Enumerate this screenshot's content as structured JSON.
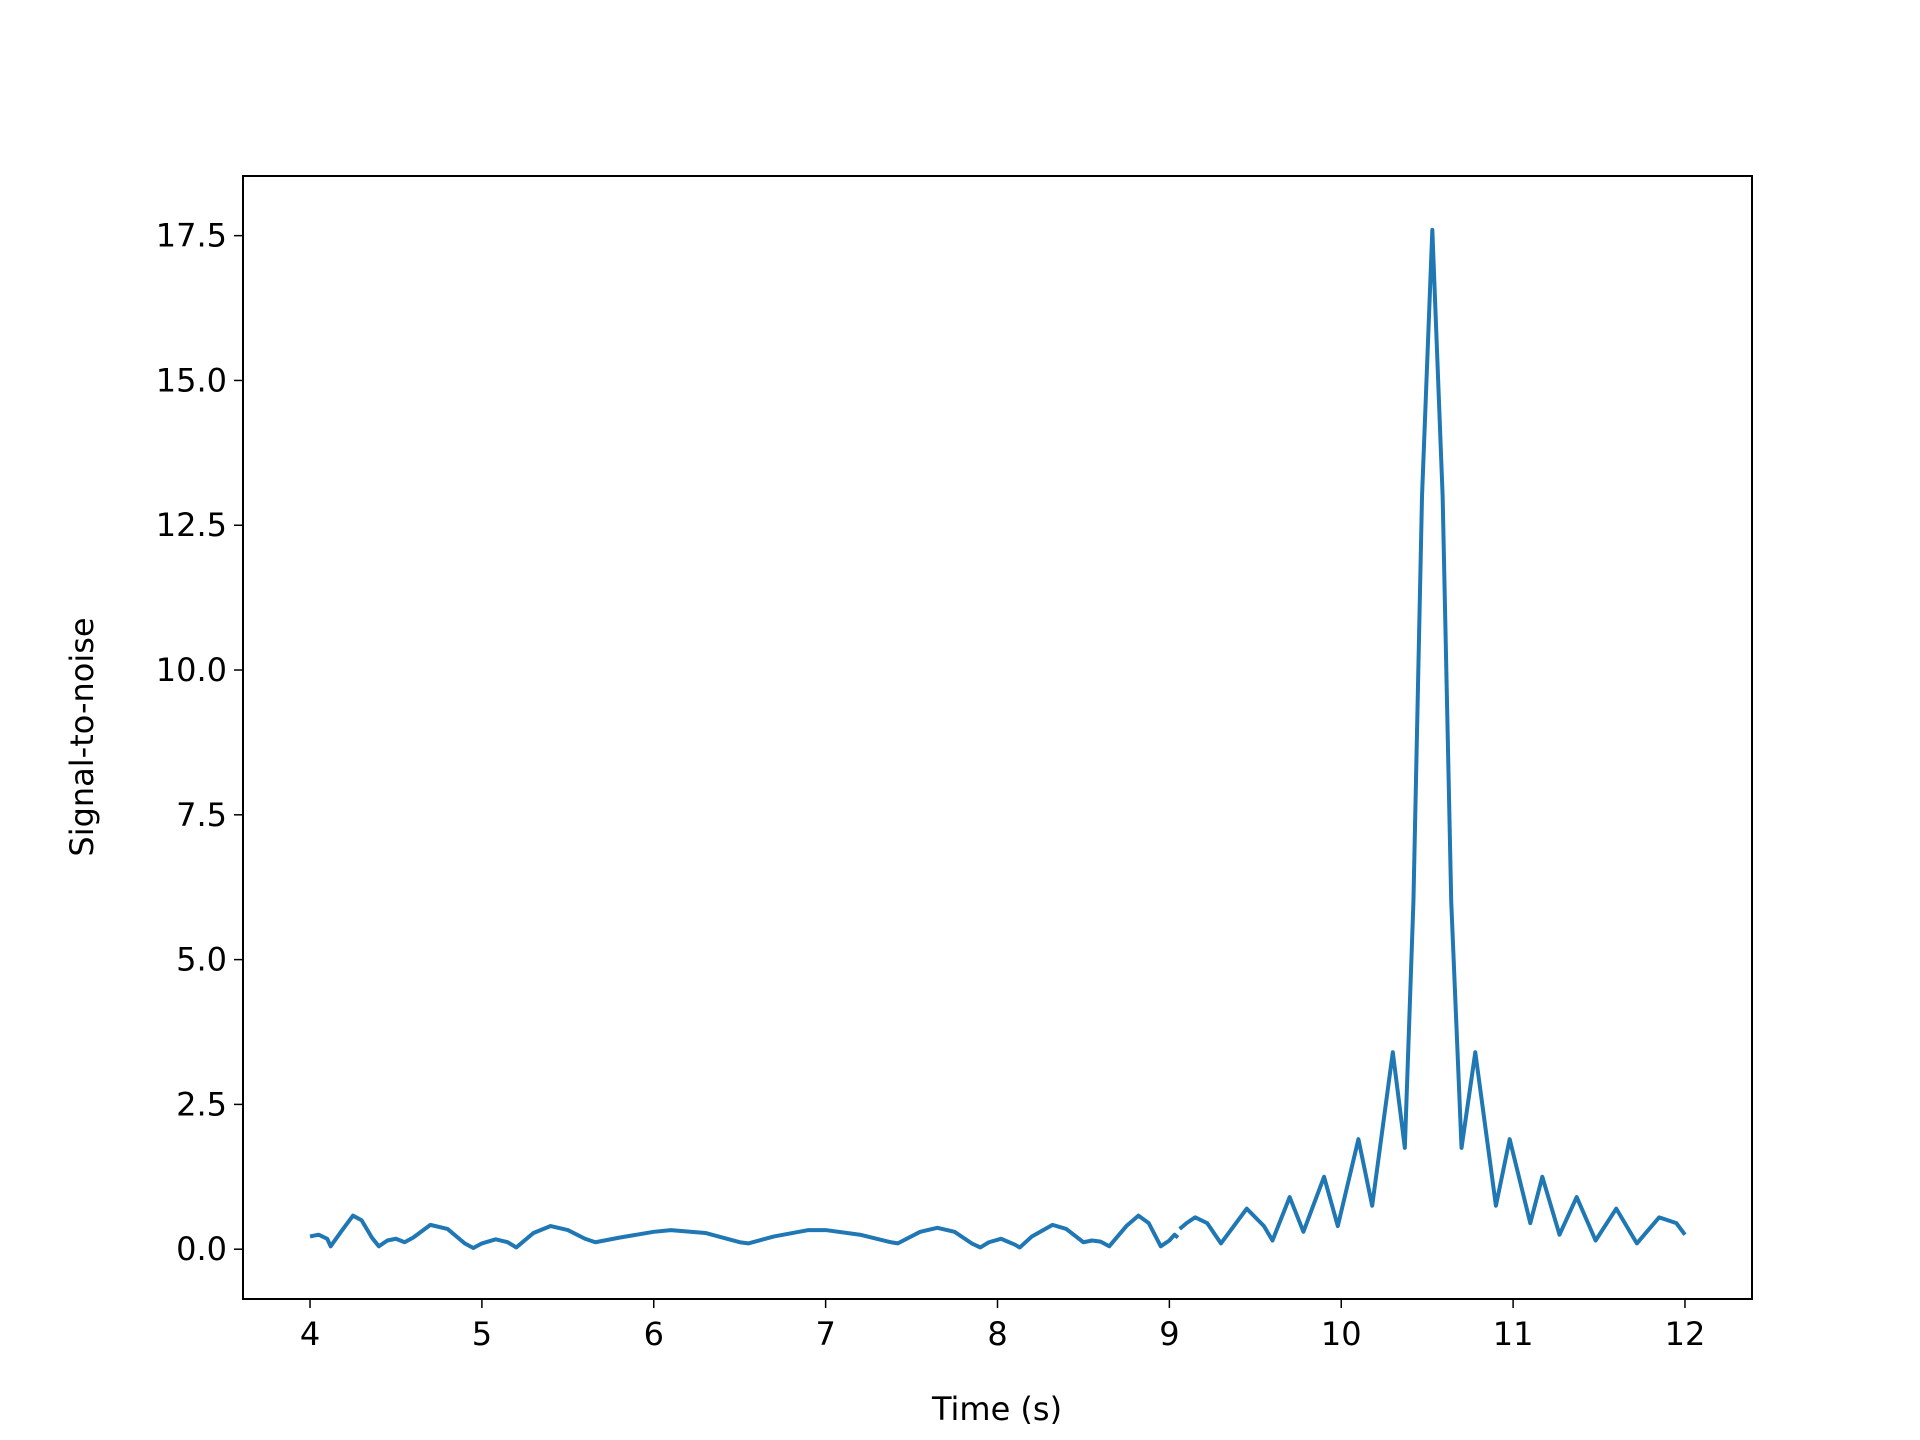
{
  "chart_data": {
    "type": "line",
    "xlabel": "Time (s)",
    "ylabel": "Signal-to-noise",
    "color": "#1f77b4",
    "x": [
      4.0,
      4.05,
      4.1,
      4.12,
      4.18,
      4.25,
      4.3,
      4.36,
      4.4,
      4.45,
      4.5,
      4.55,
      4.6,
      4.7,
      4.8,
      4.9,
      4.95,
      5.0,
      5.08,
      5.15,
      5.2,
      5.3,
      5.4,
      5.5,
      5.6,
      5.66,
      5.8,
      6.0,
      6.1,
      6.3,
      6.5,
      6.55,
      6.7,
      6.9,
      7.0,
      7.2,
      7.38,
      7.42,
      7.55,
      7.65,
      7.75,
      7.85,
      7.9,
      7.95,
      8.02,
      8.1,
      8.13,
      8.2,
      8.32,
      8.4,
      8.5,
      8.55,
      8.6,
      8.65,
      8.75,
      8.82,
      8.88,
      8.95,
      9.0,
      9.03,
      9.05,
      9.055,
      9.06,
      9.1,
      9.15,
      9.22,
      9.3,
      9.45,
      9.55,
      9.6,
      9.7,
      9.78,
      9.9,
      9.98,
      10.1,
      10.18,
      10.3,
      10.37,
      10.42,
      10.47,
      10.53,
      10.59,
      10.64,
      10.7,
      10.78,
      10.9,
      10.98,
      11.1,
      11.17,
      11.27,
      11.37,
      11.48,
      11.6,
      11.72,
      11.85,
      11.95,
      12.0
    ],
    "values": [
      0.22,
      0.25,
      0.18,
      0.05,
      0.3,
      0.58,
      0.5,
      0.2,
      0.05,
      0.15,
      0.18,
      0.12,
      0.2,
      0.42,
      0.35,
      0.1,
      0.02,
      0.1,
      0.17,
      0.12,
      0.03,
      0.28,
      0.4,
      0.33,
      0.18,
      0.12,
      0.2,
      0.3,
      0.33,
      0.28,
      0.12,
      0.1,
      0.22,
      0.33,
      0.33,
      0.25,
      0.12,
      0.1,
      0.3,
      0.37,
      0.3,
      0.1,
      0.03,
      0.12,
      0.18,
      0.08,
      0.03,
      0.22,
      0.42,
      0.35,
      0.12,
      0.15,
      0.13,
      0.05,
      0.4,
      0.58,
      0.45,
      0.05,
      0.15,
      0.25,
      0.2,
      null,
      0.35,
      0.45,
      0.55,
      0.45,
      0.1,
      0.7,
      0.4,
      0.15,
      0.9,
      0.3,
      1.25,
      0.4,
      1.9,
      0.75,
      3.4,
      1.75,
      6,
      13,
      17.6,
      13,
      6,
      1.75,
      3.4,
      0.75,
      1.9,
      0.45,
      1.25,
      0.25,
      0.9,
      0.15,
      0.7,
      0.1,
      0.55,
      0.45,
      0.25
    ],
    "xlim": [
      3.61,
      12.39
    ],
    "ylim": [
      -0.86,
      18.53
    ],
    "xticks": [
      4,
      5,
      6,
      7,
      8,
      9,
      10,
      11,
      12
    ],
    "yticks": [
      {
        "value": 0,
        "label": "0.0"
      },
      2.5,
      {
        "value": 5,
        "label": "5.0"
      },
      7.5,
      {
        "value": 10,
        "label": "10.0"
      },
      12.5,
      {
        "value": 15,
        "label": "15.0"
      },
      17.5
    ]
  }
}
